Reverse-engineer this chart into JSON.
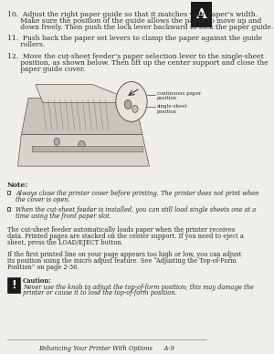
{
  "bg_color": "#f0eeea",
  "tab_color": "#1a1a1a",
  "tab_letter": "A",
  "title_bar_text": "Enhancing Your Printer With Options      A-9",
  "step10": "10.  Adjust the right paper guide so that it matches your paper’s width.\n      Make sure the position of the guide allows the paper to move up and\n      down freely. Then push the lock lever backward to lock the paper guide.",
  "step11": "11.  Push back the paper set levers to clamp the paper against the guide\n      rollers.",
  "step12": "12.  Move the cut-sheet feeder’s paper selection lever to the single-sheet\n      position, as shown below. Then lift up the center support and close the\n      paper guide cover.",
  "label_continuous": "continuous paper\nposition",
  "label_single": "single-sheet\nposition",
  "note_header": "Note:",
  "note_bullet1": "Always close the printer cover before printing. The printer does not print when\nthe cover is open.",
  "note_bullet2": "When the cut-sheet feeder is installed, you can still load single sheets one at a\ntime using the front paper slot.",
  "para1": "The cut-sheet feeder automatically loads paper when the printer receives\ndata. Printed pages are stacked on the center support. If you need to eject a\nsheet, press the LOAD/EJECT button.",
  "para2": "If the first printed line on your page appears too high or low, you can adjust\nits position using the micro adjust feature. See “Adjusting the Top-of-Form\nPosition” on page 2-36.",
  "caution_header": "Caution:",
  "caution_text": "Never use the knob to adjust the top-of-form position; this may damage the\nprinter or cause it to lose the top-of-form position.",
  "font_size_body": 5.5,
  "font_size_small": 4.8,
  "text_color": "#2a2a2a"
}
